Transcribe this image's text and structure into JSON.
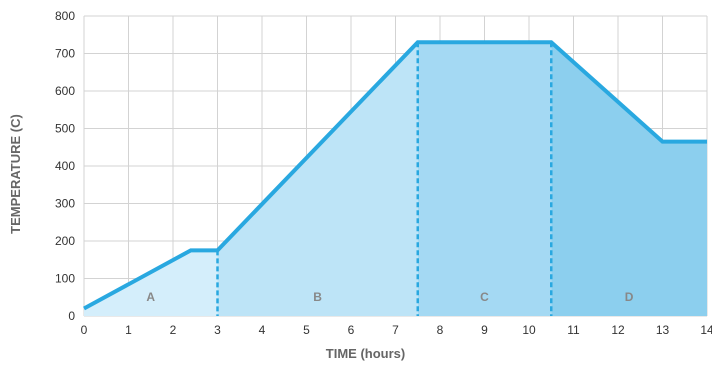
{
  "chart_data": {
    "type": "area",
    "xlabel": "TIME (hours)",
    "ylabel": "TEMPERATURE (C)",
    "xlim": [
      0,
      14
    ],
    "ylim": [
      0,
      800
    ],
    "x_ticks": [
      0,
      1,
      2,
      3,
      4,
      5,
      6,
      7,
      8,
      9,
      10,
      11,
      12,
      13,
      14
    ],
    "y_ticks": [
      0,
      100,
      200,
      300,
      400,
      500,
      600,
      700,
      800
    ],
    "grid": true,
    "series": [
      {
        "x": [
          0,
          2.4,
          3,
          7.5,
          10.5,
          13,
          14
        ],
        "y": [
          20,
          175,
          175,
          730,
          730,
          465,
          465
        ]
      }
    ],
    "regions": [
      {
        "label": "A",
        "x_start": 0,
        "x_end": 3
      },
      {
        "label": "B",
        "x_start": 3,
        "x_end": 7.5
      },
      {
        "label": "C",
        "x_start": 7.5,
        "x_end": 10.5
      },
      {
        "label": "D",
        "x_start": 10.5,
        "x_end": 14
      }
    ],
    "colors": {
      "line": "#29a8e0",
      "fills": [
        "#d4eefb",
        "#bde4f7",
        "#a4d9f3",
        "#8ccfee"
      ],
      "grid": "#d3d3d3"
    }
  }
}
